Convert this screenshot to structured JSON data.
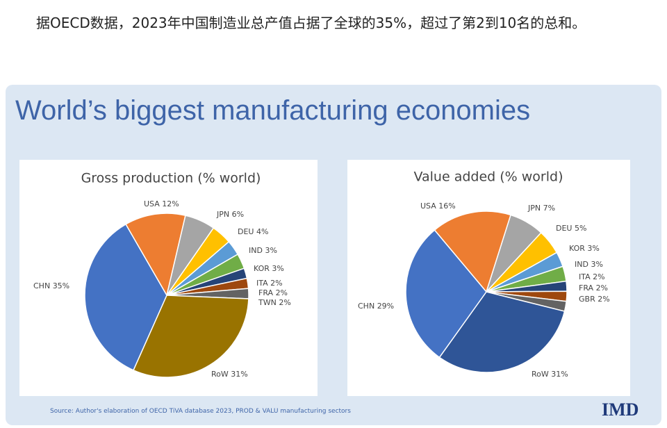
{
  "article": {
    "paragraph": "据OECD数据，2023年中国制造业总产值占据了全球的35%，超过了第2到10名的总和。"
  },
  "slide": {
    "title": "World’s biggest manufacturing economies",
    "source": "Source: Author's elaboration of OECD   TiVA database 2023, PROD & VALU manufacturing sectors",
    "logo": "IMD"
  },
  "chart_data": [
    {
      "type": "pie",
      "title": "Gross production  (% world)",
      "categories": [
        "USA",
        "JPN",
        "DEU",
        "IND",
        "KOR",
        "ITA",
        "FRA",
        "TWN",
        "RoW",
        "CHN"
      ],
      "values": [
        12,
        6,
        4,
        3,
        3,
        2,
        2,
        2,
        31,
        35
      ],
      "value_labels": [
        "12%",
        "6%",
        "4%",
        "3%",
        "3%",
        "2%",
        "2%",
        "2%",
        "31%",
        "35%"
      ],
      "colors": [
        "#ed7d31",
        "#a5a5a5",
        "#ffc000",
        "#5b9bd5",
        "#70ad47",
        "#264478",
        "#9e480e",
        "#636363",
        "#997300",
        "#4472c4"
      ]
    },
    {
      "type": "pie",
      "title": "Value added (% world)",
      "categories": [
        "USA",
        "JPN",
        "DEU",
        "KOR",
        "IND",
        "ITA",
        "FRA",
        "GBR",
        "RoW",
        "CHN"
      ],
      "values": [
        16,
        7,
        5,
        3,
        3,
        2,
        2,
        2,
        31,
        29
      ],
      "value_labels": [
        "16%",
        "7%",
        "5%",
        "3%",
        "3%",
        "2%",
        "2%",
        "2%",
        "31%",
        "29%"
      ],
      "colors": [
        "#ed7d31",
        "#a5a5a5",
        "#ffc000",
        "#5b9bd5",
        "#70ad47",
        "#264478",
        "#9e480e",
        "#636363",
        "#2f5597",
        "#4472c4"
      ]
    }
  ]
}
